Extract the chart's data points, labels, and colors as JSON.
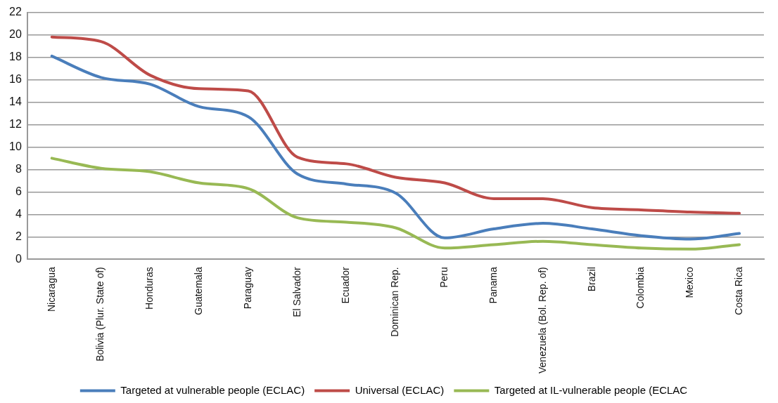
{
  "chart_data": {
    "type": "line",
    "categories": [
      "Nicaragua",
      "Bolivia (Plur. State of)",
      "Honduras",
      "Guatemala",
      "Paraguay",
      "El Salvador",
      "Ecuador",
      "Dominican Rep.",
      "Peru",
      "Panama",
      "Venezuela (Bol. Rep. of)",
      "Brazil",
      "Colombia",
      "Mexico",
      "Costa Rica"
    ],
    "series": [
      {
        "name": "Targeted at vulnerable people (ECLAC)",
        "color": "#4a7ebb",
        "values": [
          18.1,
          16.2,
          15.6,
          13.6,
          12.7,
          7.6,
          6.7,
          5.9,
          1.9,
          2.7,
          3.2,
          2.7,
          2.1,
          1.8,
          2.3
        ]
      },
      {
        "name": "Universal (ECLAC)",
        "color": "#be4b48",
        "values": [
          19.8,
          19.4,
          16.4,
          15.2,
          15.0,
          9.1,
          8.5,
          7.3,
          6.8,
          5.4,
          5.4,
          4.6,
          4.4,
          4.2,
          4.1
        ]
      },
      {
        "name": "Targeted at IL-vulnerable people (ECLAC",
        "color": "#98b954",
        "values": [
          9.0,
          8.1,
          7.8,
          6.8,
          6.3,
          3.7,
          3.3,
          2.8,
          1.0,
          1.3,
          1.6,
          1.3,
          1.0,
          0.9,
          1.3
        ]
      }
    ],
    "ylim": [
      0,
      22
    ],
    "yticks": [
      0,
      2,
      4,
      6,
      8,
      10,
      12,
      14,
      16,
      18,
      20,
      22
    ],
    "grid": "y",
    "legend": "bottom",
    "marker": "none",
    "line_style": "solid"
  }
}
